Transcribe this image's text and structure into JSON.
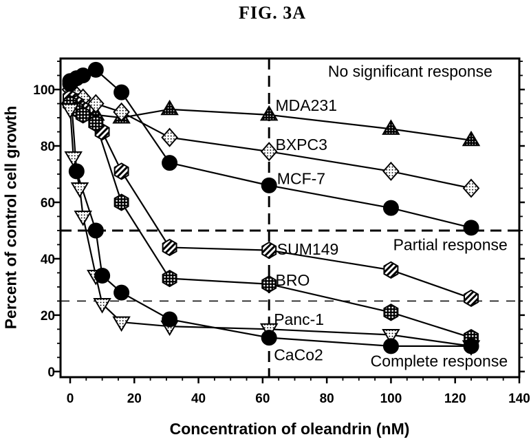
{
  "figure": {
    "title": "FIG. 3A",
    "background_color": "#ffffff",
    "ink_color": "#000000"
  },
  "chart_data": {
    "type": "line",
    "title": "FIG. 3A",
    "xlabel": "Concentration of oleandrin (nM)",
    "ylabel": "Percent of control cell growth",
    "xlim": [
      -3,
      140
    ],
    "ylim": [
      -2,
      111
    ],
    "x_major_ticks": [
      0,
      20,
      40,
      60,
      80,
      100,
      120,
      140
    ],
    "y_major_ticks": [
      0,
      20,
      40,
      60,
      80,
      100
    ],
    "minor_tick_step_x": 5,
    "minor_tick_step_y": 5,
    "grid": false,
    "legend_position": "inline labels beside curves",
    "reference_lines": [
      {
        "id": "partial-response-threshold",
        "orientation": "horizontal",
        "value": 50,
        "style": "bold-dash"
      },
      {
        "id": "complete-response-threshold",
        "orientation": "horizontal",
        "value": 25,
        "style": "light-dash"
      },
      {
        "id": "dose-62nM-marker",
        "orientation": "vertical",
        "value": 62,
        "style": "bold-dash"
      }
    ],
    "region_annotations": [
      {
        "id": "no-significant-response",
        "text": "No significant response",
        "x": 106,
        "y": 104.5,
        "anchor": "middle"
      },
      {
        "id": "partial-response",
        "text": "Partial response",
        "x": 118.5,
        "y": 43,
        "anchor": "middle"
      },
      {
        "id": "complete-response",
        "text": "Complete response",
        "x": 115,
        "y": 1.8,
        "anchor": "middle"
      }
    ],
    "series": [
      {
        "name": "MDA231",
        "marker": "triangle-up",
        "marker_fill": "black-speckled",
        "x": [
          0,
          2,
          4,
          8,
          16,
          31,
          62,
          100,
          125
        ],
        "y": [
          97,
          95,
          93,
          91,
          90,
          93,
          91,
          86,
          82
        ],
        "label_xy": [
          64,
          92.5
        ]
      },
      {
        "name": "BXPC3",
        "marker": "diamond",
        "marker_fill": "white-dotted",
        "x": [
          0,
          2,
          4,
          8,
          16,
          31,
          62,
          100,
          125
        ],
        "y": [
          100,
          98,
          97,
          95,
          92,
          83,
          78,
          71,
          65
        ],
        "label_xy": [
          64,
          78.5
        ]
      },
      {
        "name": "MCF-7",
        "marker": "circle",
        "marker_fill": "solid-black",
        "x": [
          0,
          2,
          4,
          8,
          16,
          31,
          62,
          100,
          125
        ],
        "y": [
          103,
          104,
          105,
          107,
          99,
          74,
          66,
          58,
          51
        ],
        "label_xy": [
          64.5,
          66.5
        ]
      },
      {
        "name": "SUM149",
        "marker": "hexagon",
        "marker_fill": "diagonal-hatch",
        "x": [
          0,
          2,
          4,
          10,
          16,
          31,
          62,
          100,
          125
        ],
        "y": [
          97,
          95,
          93,
          85,
          71,
          44,
          43,
          36,
          26
        ],
        "label_xy": [
          64.5,
          41.5
        ]
      },
      {
        "name": "BRO",
        "marker": "hexagon",
        "marker_fill": "black-dotted",
        "x": [
          0,
          2,
          4,
          8,
          16,
          31,
          62,
          100,
          125
        ],
        "y": [
          95,
          93,
          91,
          88,
          60,
          33,
          31,
          21,
          12
        ],
        "label_xy": [
          64,
          30.5
        ]
      },
      {
        "name": "Panc-1",
        "marker": "triangle-down",
        "marker_fill": "white-dotted",
        "x": [
          0,
          1,
          3,
          4,
          8,
          10,
          16,
          31,
          62,
          100,
          125
        ],
        "y": [
          93,
          76,
          65,
          55,
          34,
          24,
          17.5,
          16,
          15,
          13,
          9
        ],
        "label_xy": [
          63.5,
          16.5
        ]
      },
      {
        "name": "CaCo2",
        "marker": "circle",
        "marker_fill": "solid-black",
        "x": [
          0,
          2,
          8,
          10,
          16,
          31,
          62,
          100,
          125
        ],
        "y": [
          102,
          71,
          50,
          34,
          28,
          18.5,
          12,
          9,
          9
        ],
        "label_xy": [
          63.5,
          4
        ]
      }
    ]
  }
}
